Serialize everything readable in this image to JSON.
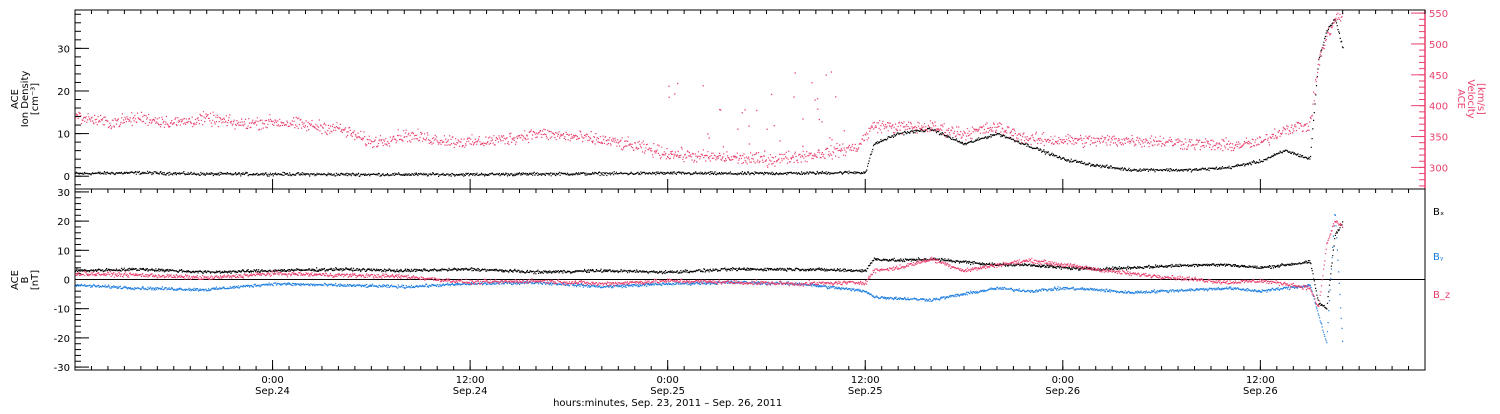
{
  "colors": {
    "density": "#000000",
    "velocity": "#e8426e",
    "bx": "#000000",
    "by": "#1f7fe0",
    "bz": "#e8426e",
    "axis": "#000000"
  },
  "panels": {
    "top": {
      "left_label_lines": [
        "ACE",
        "Ion Density",
        "[cm⁻³]"
      ],
      "right_label_lines": [
        "ACE",
        "Velocity",
        "[km/s]"
      ]
    },
    "bottom": {
      "left_label_lines": [
        "ACE",
        "B",
        "[nT]"
      ],
      "legend": [
        "Bₓ",
        "Bᵧ",
        "B_z"
      ]
    }
  },
  "x_axis": {
    "title": "hours:minutes, Sep. 23, 2011 – Sep. 26, 2011",
    "ticks": [
      {
        "h": 12,
        "top": "0:00",
        "bottom": "Sep.24"
      },
      {
        "h": 24,
        "top": "12:00",
        "bottom": "Sep.24"
      },
      {
        "h": 36,
        "top": "0:00",
        "bottom": "Sep.25"
      },
      {
        "h": 48,
        "top": "12:00",
        "bottom": "Sep.25"
      },
      {
        "h": 60,
        "top": "0:00",
        "bottom": "Sep.26"
      },
      {
        "h": 72,
        "top": "12:00",
        "bottom": "Sep.26"
      }
    ]
  },
  "chart_data": [
    {
      "type": "scatter",
      "title": "",
      "xlabel": "hours:minutes, Sep. 23, 2011 – Sep. 26, 2011",
      "ylabel": "ACE Ion Density [cm⁻³]",
      "y2label": "ACE Velocity [km/s]",
      "x_unit": "hours since Sep. 23, 2011 12:00",
      "xlim": [
        0,
        82
      ],
      "ylim": [
        -3,
        39
      ],
      "y2lim": [
        265,
        555
      ],
      "yticks": [
        0,
        10,
        20,
        30
      ],
      "y2ticks": [
        300,
        350,
        400,
        450,
        500,
        550
      ],
      "grid": false,
      "series": [
        {
          "name": "Ion Density",
          "axis": "left",
          "points": [
            [
              0,
              0.6
            ],
            [
              4,
              0.8
            ],
            [
              8,
              0.5
            ],
            [
              12,
              0.5
            ],
            [
              16,
              0.4
            ],
            [
              20,
              0.4
            ],
            [
              24,
              0.4
            ],
            [
              28,
              0.5
            ],
            [
              32,
              0.6
            ],
            [
              36,
              0.7
            ],
            [
              40,
              0.6
            ],
            [
              44,
              0.7
            ],
            [
              48,
              0.9
            ],
            [
              48.5,
              7.5
            ],
            [
              50,
              10
            ],
            [
              52,
              11
            ],
            [
              54,
              7.5
            ],
            [
              56,
              10
            ],
            [
              58,
              7
            ],
            [
              60,
              4
            ],
            [
              62,
              2.5
            ],
            [
              64,
              1.5
            ],
            [
              66,
              1.5
            ],
            [
              67.5,
              1.4
            ],
            [
              68,
              1.5
            ],
            [
              70,
              2
            ],
            [
              72,
              3.5
            ],
            [
              73.5,
              6
            ],
            [
              75,
              4
            ],
            [
              75.5,
              27
            ],
            [
              76,
              34
            ],
            [
              76.5,
              37
            ],
            [
              77,
              30
            ]
          ]
        },
        {
          "name": "Velocity",
          "axis": "right",
          "points": [
            [
              0,
              383
            ],
            [
              2,
              372
            ],
            [
              4,
              380
            ],
            [
              6,
              372
            ],
            [
              8,
              379
            ],
            [
              10,
              370
            ],
            [
              12,
              374
            ],
            [
              14,
              368
            ],
            [
              16,
              363
            ],
            [
              18,
              340
            ],
            [
              20,
              352
            ],
            [
              22,
              345
            ],
            [
              24,
              340
            ],
            [
              26,
              345
            ],
            [
              28,
              355
            ],
            [
              30,
              350
            ],
            [
              32,
              344
            ],
            [
              34,
              334
            ],
            [
              36,
              322
            ],
            [
              38,
              317
            ],
            [
              40,
              315
            ],
            [
              42,
              312
            ],
            [
              44,
              318
            ],
            [
              46,
              325
            ],
            [
              47.5,
              333
            ],
            [
              48.5,
              368
            ],
            [
              50,
              365
            ],
            [
              52,
              365
            ],
            [
              54,
              355
            ],
            [
              56,
              365
            ],
            [
              58,
              345
            ],
            [
              60,
              344
            ],
            [
              62,
              343
            ],
            [
              64,
              344
            ],
            [
              66,
              342
            ],
            [
              68,
              338
            ],
            [
              70,
              335
            ],
            [
              72,
              340
            ],
            [
              73.5,
              363
            ],
            [
              75,
              368
            ],
            [
              75.5,
              470
            ],
            [
              76,
              510
            ],
            [
              76.5,
              540
            ],
            [
              77,
              545
            ]
          ]
        }
      ]
    },
    {
      "type": "scatter",
      "title": "",
      "xlabel": "hours:minutes, Sep. 23, 2011 – Sep. 26, 2011",
      "ylabel": "ACE B [nT]",
      "x_unit": "hours since Sep. 23, 2011 12:00",
      "xlim": [
        0,
        82
      ],
      "ylim": [
        -31,
        31
      ],
      "yticks": [
        -30,
        -20,
        -10,
        0,
        10,
        20,
        30
      ],
      "zero_line": true,
      "grid": false,
      "series": [
        {
          "name": "Bₓ",
          "points": [
            [
              0,
              3
            ],
            [
              4,
              3.5
            ],
            [
              8,
              2.5
            ],
            [
              12,
              3
            ],
            [
              16,
              3.5
            ],
            [
              20,
              3
            ],
            [
              24,
              3.5
            ],
            [
              28,
              2.5
            ],
            [
              32,
              3
            ],
            [
              36,
              2.5
            ],
            [
              40,
              3.5
            ],
            [
              44,
              3.5
            ],
            [
              48,
              3
            ],
            [
              48.5,
              7
            ],
            [
              50,
              6.5
            ],
            [
              52,
              7
            ],
            [
              54,
              6
            ],
            [
              56,
              5
            ],
            [
              58,
              5
            ],
            [
              60,
              4
            ],
            [
              62,
              3.5
            ],
            [
              64,
              4
            ],
            [
              66,
              4.5
            ],
            [
              68,
              5
            ],
            [
              70,
              5
            ],
            [
              72,
              4
            ],
            [
              73.5,
              5
            ],
            [
              75,
              6
            ],
            [
              75.5,
              -8
            ],
            [
              76,
              -10
            ],
            [
              76.5,
              15
            ],
            [
              77,
              20
            ]
          ]
        },
        {
          "name": "Bᵧ",
          "points": [
            [
              0,
              -2
            ],
            [
              4,
              -3
            ],
            [
              8,
              -3.5
            ],
            [
              12,
              -1.5
            ],
            [
              16,
              -2
            ],
            [
              20,
              -2.5
            ],
            [
              24,
              -1.5
            ],
            [
              28,
              -1
            ],
            [
              32,
              -2.5
            ],
            [
              36,
              -1.5
            ],
            [
              40,
              -1
            ],
            [
              44,
              -1.5
            ],
            [
              48,
              -4
            ],
            [
              48.5,
              -6
            ],
            [
              50,
              -6.5
            ],
            [
              52,
              -7
            ],
            [
              54,
              -5
            ],
            [
              56,
              -3
            ],
            [
              58,
              -4
            ],
            [
              60,
              -3
            ],
            [
              62,
              -3.5
            ],
            [
              64,
              -4.5
            ],
            [
              66,
              -4
            ],
            [
              68,
              -3.5
            ],
            [
              70,
              -3
            ],
            [
              72,
              -4
            ],
            [
              73.5,
              -3
            ],
            [
              75,
              -2
            ],
            [
              75.5,
              -12
            ],
            [
              76,
              -22
            ],
            [
              76.5,
              24
            ],
            [
              77,
              -25
            ]
          ]
        },
        {
          "name": "B_z",
          "points": [
            [
              0,
              2
            ],
            [
              4,
              1.5
            ],
            [
              8,
              0.5
            ],
            [
              12,
              2
            ],
            [
              16,
              1.5
            ],
            [
              20,
              1
            ],
            [
              24,
              -1
            ],
            [
              28,
              -0.5
            ],
            [
              32,
              -1.5
            ],
            [
              36,
              -0.5
            ],
            [
              40,
              -1
            ],
            [
              44,
              -1.5
            ],
            [
              48,
              -1
            ],
            [
              48.5,
              3
            ],
            [
              50,
              4
            ],
            [
              52,
              7
            ],
            [
              54,
              3
            ],
            [
              56,
              5
            ],
            [
              58,
              6.5
            ],
            [
              60,
              5
            ],
            [
              62,
              3.5
            ],
            [
              64,
              2
            ],
            [
              66,
              1
            ],
            [
              68,
              0
            ],
            [
              70,
              -1
            ],
            [
              72,
              -0.5
            ],
            [
              73.5,
              -1.5
            ],
            [
              75,
              -3
            ],
            [
              75.5,
              -10
            ],
            [
              76,
              12
            ],
            [
              76.5,
              20
            ],
            [
              77,
              18
            ]
          ]
        }
      ]
    }
  ]
}
